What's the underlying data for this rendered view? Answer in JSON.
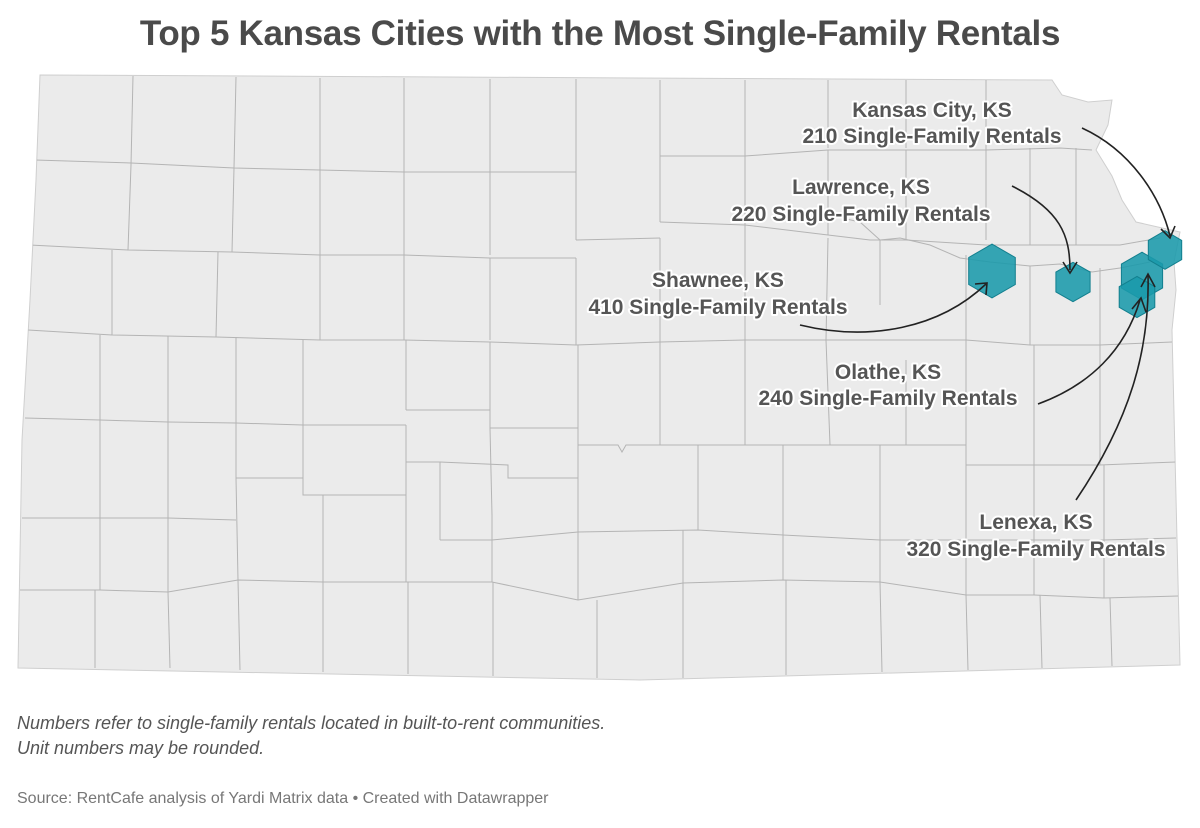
{
  "title": "Top 5 Kansas Cities with the Most Single-Family Rentals",
  "cities": [
    {
      "name": "Kansas City, KS",
      "rentals": "210 Single-Family Rentals",
      "value": 210
    },
    {
      "name": "Lawrence, KS",
      "rentals": "220 Single-Family Rentals",
      "value": 220
    },
    {
      "name": "Shawnee, KS",
      "rentals": "410 Single-Family Rentals",
      "value": 410
    },
    {
      "name": "Olathe, KS",
      "rentals": "240 Single-Family Rentals",
      "value": 240
    },
    {
      "name": "Lenexa, KS",
      "rentals": "320 Single-Family Rentals",
      "value": 320
    }
  ],
  "notes": [
    "Numbers refer to single-family rentals located in built-to-rent communities.",
    "Unit numbers may be rounded."
  ],
  "source": "Source: RentCafe analysis of Yardi Matrix data • Created with Datawrapper",
  "colors": {
    "state_fill": "#ebebeb",
    "county_line": "#b4b4b4",
    "marker_fill": "#1a9aab",
    "marker_stroke": "#127f8e",
    "label_text": "#555555"
  }
}
